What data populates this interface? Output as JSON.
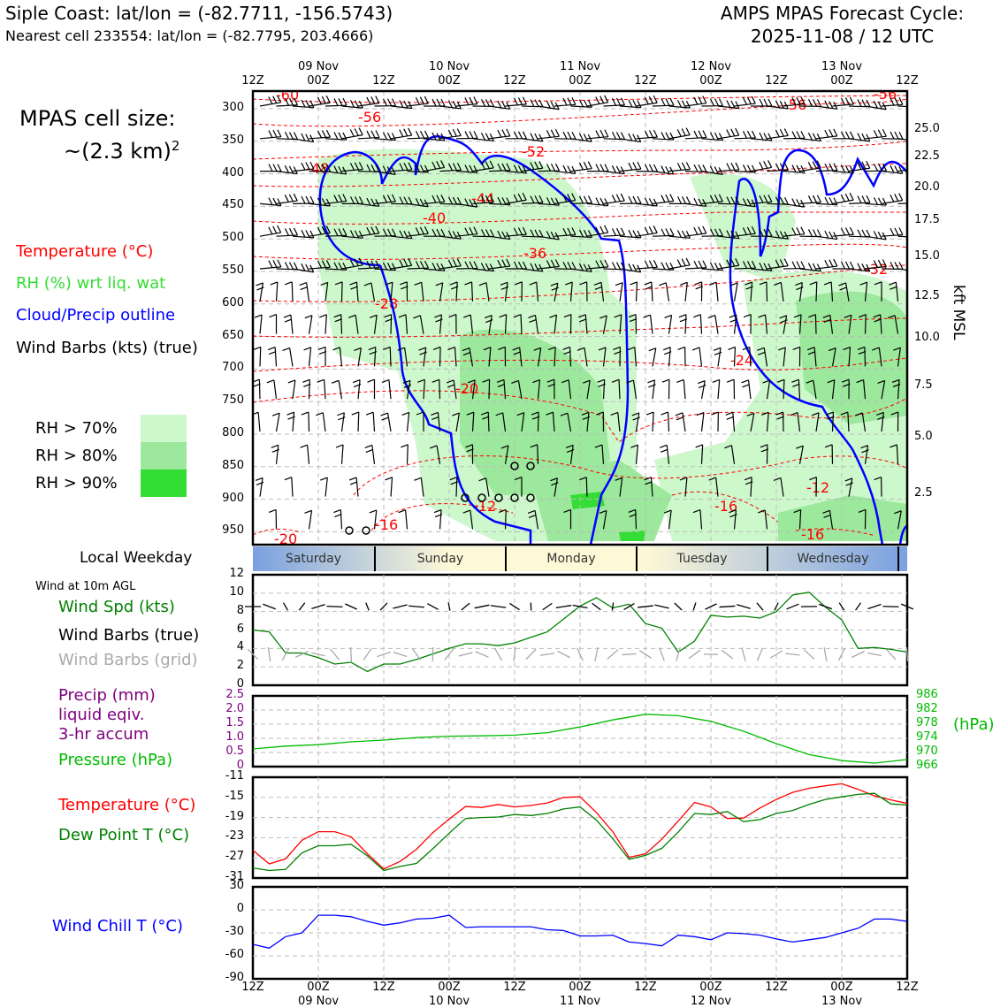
{
  "header": {
    "location": "Siple Coast: lat/lon = (-82.7711, -156.5743)",
    "nearest": "Nearest cell 233554: lat/lon = (-82.7795, 203.4666)",
    "forecast_title": "AMPS MPAS Forecast Cycle:",
    "forecast_cycle": "2025-11-08 / 12 UTC"
  },
  "left_legend": {
    "cell_size_title": "MPAS cell size:",
    "cell_size_value": "~(2.3 km)",
    "cell_size_exp": "2",
    "temperature": "Temperature (°C)",
    "rh": "RH (%) wrt liq. wat",
    "cloud": "Cloud/Precip outline",
    "wind_barbs": "Wind Barbs (kts) (true)",
    "rh70": "RH > 70%",
    "rh80": "RH > 80%",
    "rh90": "RH > 90%",
    "local_weekday": "Local Weekday",
    "wind_10m": "Wind at 10m AGL",
    "wind_spd": "Wind Spd (kts)",
    "wind_barbs_true": "Wind Barbs (true)",
    "wind_barbs_grid": "Wind Barbs (grid)",
    "precip_1": "Precip (mm)",
    "precip_2": "liquid eqiv.",
    "precip_3": "3-hr accum",
    "pressure": "Pressure (hPa)",
    "temp2": "Temperature (°C)",
    "dewpoint": "Dew Point T (°C)",
    "windchill": "Wind Chill T (°C)"
  },
  "colors": {
    "temperature": "#ff0000",
    "rh_text": "#33dd33",
    "cloud": "#0000ff",
    "wind_spd": "#008000",
    "wind_grid": "#aaaaaa",
    "precip": "#800080",
    "pressure": "#00bb00",
    "dewpoint": "#008000",
    "windchill": "#0000ff",
    "rh70": "#ccf8cc",
    "rh80": "#9ce89c",
    "rh90": "#33dd33"
  },
  "axes": {
    "top_hours": [
      "12Z",
      "00Z",
      "12Z",
      "00Z",
      "12Z",
      "00Z",
      "12Z",
      "00Z",
      "12Z",
      "00Z",
      "12Z"
    ],
    "dates": [
      "09 Nov",
      "10 Nov",
      "11 Nov",
      "12 Nov",
      "13 Nov"
    ],
    "pressure_ticks": [
      "300",
      "350",
      "400",
      "450",
      "500",
      "550",
      "600",
      "650",
      "700",
      "750",
      "800",
      "850",
      "900",
      "950"
    ],
    "kft_ticks": [
      "25.0",
      "22.5",
      "20.0",
      "17.5",
      "15.0",
      "12.5",
      "10.0",
      "7.5",
      "5.0",
      "2.5"
    ],
    "kft_label": "kft MSL",
    "weekdays": [
      "Saturday",
      "Sunday",
      "Monday",
      "Tuesday",
      "Wednesday"
    ]
  },
  "chart_data": [
    {
      "type": "heatmap",
      "x": [
        "08 Nov 12Z",
        "09 Nov 00Z",
        "09 Nov 12Z",
        "10 Nov 00Z",
        "10 Nov 12Z",
        "11 Nov 00Z",
        "11 Nov 12Z",
        "12 Nov 00Z",
        "12 Nov 12Z",
        "13 Nov 00Z",
        "13 Nov 12Z"
      ],
      "ylabel": "kft MSL",
      "ylim": [
        300,
        975
      ],
      "temperature_contour_labels": [
        "-60",
        "-56",
        "-52",
        "-48",
        "-44",
        "-40",
        "-36",
        "-32",
        "-28",
        "-24",
        "-20",
        "-16",
        "-12",
        "-16",
        "-20",
        "-12",
        "-16",
        "-16",
        "-56",
        "-56"
      ]
    },
    {
      "type": "line",
      "x_hours": [
        0,
        3,
        6,
        9,
        12,
        15,
        18,
        21,
        24,
        27,
        30,
        33,
        36,
        39,
        42,
        45,
        48,
        51,
        54,
        57,
        60,
        63,
        66,
        69,
        72,
        75,
        78,
        81,
        84,
        87,
        90,
        93,
        96,
        99,
        102,
        105,
        108,
        111,
        114,
        117,
        120
      ],
      "ylim": [
        0,
        12
      ],
      "yticks": [
        "0",
        "2",
        "4",
        "6",
        "8",
        "10",
        "12"
      ],
      "series": [
        {
          "name": "Wind Spd (kts)",
          "values": [
            6.0,
            5.8,
            3.5,
            3.5,
            3.0,
            2.3,
            2.5,
            1.5,
            2.3,
            2.3,
            2.8,
            3.4,
            4.0,
            4.5,
            4.5,
            4.3,
            4.6,
            5.2,
            5.8,
            7.2,
            8.6,
            9.5,
            8.4,
            8.8,
            6.7,
            6.2,
            3.6,
            4.8,
            7.6,
            7.4,
            7.5,
            7.3,
            8.0,
            9.8,
            10.1,
            8.5,
            7.1,
            4.0,
            4.1,
            3.9,
            3.6
          ]
        }
      ]
    },
    {
      "type": "line",
      "x_hours": [
        0,
        6,
        12,
        18,
        24,
        30,
        36,
        42,
        48,
        54,
        60,
        66,
        72,
        78,
        84,
        90,
        96,
        102,
        108,
        114,
        120
      ],
      "precip_ylim": [
        0,
        2.5
      ],
      "precip_yticks": [
        "0",
        "0.5",
        "1.0",
        "1.5",
        "2.0",
        "2.5"
      ],
      "pressure_ylim": [
        966,
        986
      ],
      "pressure_yticks": [
        "966",
        "970",
        "974",
        "978",
        "982",
        "986"
      ],
      "series": [
        {
          "name": "Pressure (hPa)",
          "values": [
            971.0,
            971.8,
            972.2,
            973.0,
            973.5,
            974.2,
            974.6,
            974.7,
            974.9,
            975.6,
            977.2,
            979.2,
            980.8,
            980.4,
            978.8,
            976.0,
            972.5,
            969.4,
            967.7,
            967.0,
            968.0
          ]
        }
      ]
    },
    {
      "type": "line",
      "x_hours": [
        0,
        3,
        6,
        9,
        12,
        15,
        18,
        21,
        24,
        27,
        30,
        33,
        36,
        39,
        42,
        45,
        48,
        51,
        54,
        57,
        60,
        63,
        66,
        69,
        72,
        75,
        78,
        81,
        84,
        87,
        90,
        93,
        96,
        99,
        102,
        105,
        108,
        111,
        114,
        117,
        120
      ],
      "ylim": [
        -31,
        -11
      ],
      "yticks": [
        "-31",
        "-27",
        "-23",
        "-19",
        "-15",
        "-11"
      ],
      "series": [
        {
          "name": "Temperature (°C)",
          "values": [
            -25.5,
            -28.2,
            -27.2,
            -23.5,
            -21.8,
            -21.8,
            -22.8,
            -26.2,
            -29.2,
            -27.7,
            -25.3,
            -22.0,
            -19.3,
            -16.8,
            -17.0,
            -16.4,
            -16.9,
            -16.6,
            -16.1,
            -15.0,
            -14.9,
            -18.0,
            -21.8,
            -26.9,
            -26.2,
            -23.3,
            -19.7,
            -16.0,
            -16.9,
            -19.2,
            -19.1,
            -17.1,
            -15.4,
            -14.0,
            -13.2,
            -12.7,
            -12.3,
            -13.4,
            -14.7,
            -15.5,
            -16.2
          ]
        },
        {
          "name": "Dew Point T (°C)",
          "values": [
            -29.0,
            -29.5,
            -29.3,
            -26.0,
            -24.6,
            -24.6,
            -24.3,
            -26.6,
            -29.5,
            -28.7,
            -28.1,
            -25.2,
            -22.1,
            -19.2,
            -19.0,
            -18.9,
            -18.4,
            -18.6,
            -18.2,
            -17.3,
            -16.9,
            -19.5,
            -23.2,
            -27.3,
            -26.5,
            -25.1,
            -21.9,
            -18.2,
            -18.4,
            -17.8,
            -19.8,
            -19.4,
            -18.2,
            -17.6,
            -16.4,
            -15.4,
            -14.9,
            -14.4,
            -14.2,
            -16.3,
            -16.5
          ]
        }
      ]
    },
    {
      "type": "line",
      "x_hours": [
        0,
        3,
        6,
        9,
        12,
        15,
        18,
        21,
        24,
        27,
        30,
        33,
        36,
        39,
        42,
        45,
        48,
        51,
        54,
        57,
        60,
        63,
        66,
        69,
        72,
        75,
        78,
        81,
        84,
        87,
        90,
        93,
        96,
        99,
        102,
        105,
        108,
        111,
        114,
        117,
        120
      ],
      "ylim": [
        -90,
        30
      ],
      "yticks": [
        "-90",
        "-60",
        "-30",
        "0",
        "30"
      ],
      "series": [
        {
          "name": "Wind Chill T (°C)",
          "values": [
            -45,
            -50,
            -35,
            -30,
            -7,
            -7,
            -9,
            -15,
            -20,
            -17,
            -12,
            -11,
            -7,
            -23,
            -22,
            -22,
            -22,
            -22,
            -26,
            -27,
            -34,
            -34,
            -33,
            -42,
            -44,
            -47,
            -33,
            -35,
            -39,
            -30,
            -31,
            -33,
            -38,
            -42,
            -39,
            -36,
            -30,
            -24,
            -12,
            -12,
            -15
          ]
        }
      ]
    }
  ]
}
